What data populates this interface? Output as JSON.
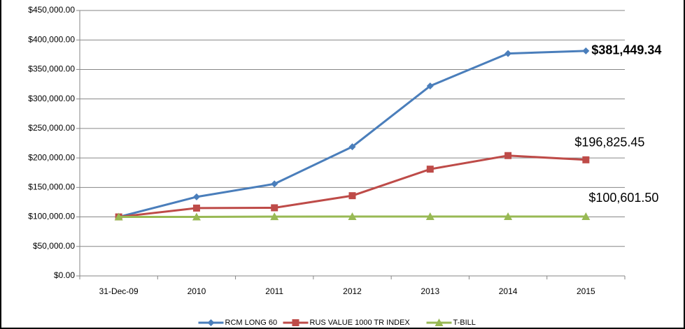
{
  "chart_data": {
    "type": "line",
    "categories": [
      "31-Dec-09",
      "2010",
      "2011",
      "2012",
      "2013",
      "2014",
      "2015"
    ],
    "series": [
      {
        "name": "RCM LONG 60",
        "color": "#4a7ebb",
        "marker": "diamond",
        "values": [
          100000,
          134000,
          156000,
          219000,
          322000,
          377000,
          381449.34
        ],
        "value_labels": [
          null,
          null,
          null,
          null,
          null,
          null,
          "$381,449.34"
        ]
      },
      {
        "name": "RUS VALUE 1000 TR INDEX",
        "color": "#be4b48",
        "marker": "square",
        "values": [
          100000,
          115000,
          115500,
          136000,
          181000,
          204000,
          196825.45
        ],
        "value_labels": [
          null,
          null,
          null,
          null,
          null,
          null,
          "$196,825.45"
        ]
      },
      {
        "name": "T-BILL",
        "color": "#98b954",
        "marker": "triangle",
        "values": [
          100000,
          100000,
          100500,
          100600,
          100600,
          100600,
          100601.5
        ],
        "value_labels": [
          null,
          null,
          null,
          null,
          null,
          null,
          "$100,601.50"
        ]
      }
    ],
    "ylim": [
      0,
      450000
    ],
    "yticks": [
      {
        "value": 0,
        "label": "$0.00"
      },
      {
        "value": 50000,
        "label": "$50,000.00"
      },
      {
        "value": 100000,
        "label": "$100,000.00"
      },
      {
        "value": 150000,
        "label": "$150,000.00"
      },
      {
        "value": 200000,
        "label": "$200,000.00"
      },
      {
        "value": 250000,
        "label": "$250,000.00"
      },
      {
        "value": 300000,
        "label": "$300,000.00"
      },
      {
        "value": 350000,
        "label": "$350,000.00"
      },
      {
        "value": 400000,
        "label": "$400,000.00"
      },
      {
        "value": 450000,
        "label": "$450,000.00"
      }
    ],
    "grid": true,
    "legend": "bottom"
  }
}
